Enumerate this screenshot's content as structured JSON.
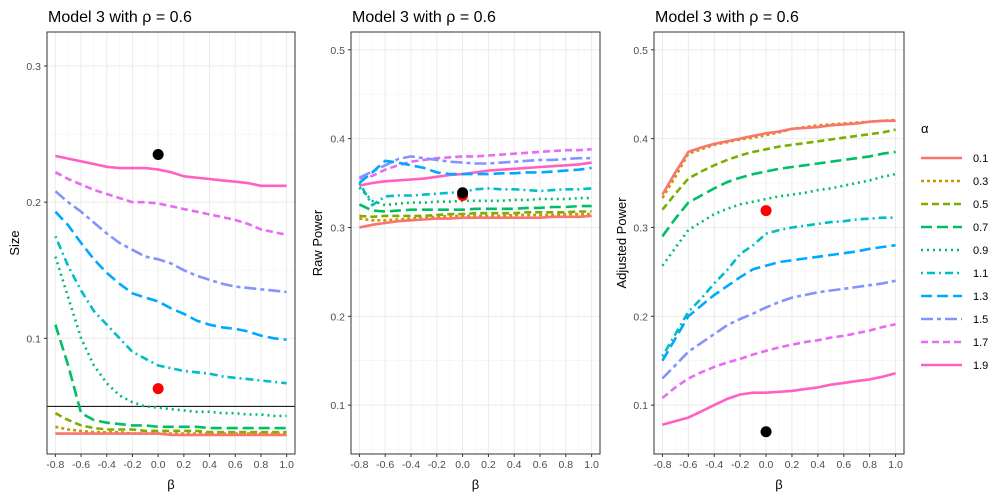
{
  "chart_data": {
    "type": "line",
    "x": [
      -0.8,
      -0.7,
      -0.6,
      -0.5,
      -0.4,
      -0.3,
      -0.2,
      -0.1,
      0.0,
      0.1,
      0.2,
      0.3,
      0.4,
      0.5,
      0.6,
      0.7,
      0.8,
      0.9,
      1.0
    ],
    "xticks": [
      "-0.8",
      "-0.6",
      "-0.4",
      "-0.2",
      "0.0",
      "0.2",
      "0.4",
      "0.6",
      "0.8",
      "1.0"
    ],
    "legend": {
      "title": "α",
      "entries": [
        {
          "label": "0.1",
          "color": "#F8766D",
          "dash": "solid"
        },
        {
          "label": "0.3",
          "color": "#CD9600",
          "dash": "dotted-short"
        },
        {
          "label": "0.5",
          "color": "#7CAE00",
          "dash": "dash"
        },
        {
          "label": "0.7",
          "color": "#00BE67",
          "dash": "longdash"
        },
        {
          "label": "0.9",
          "color": "#00BE67",
          "dash": "dotted"
        },
        {
          "label": "1.1",
          "color": "#00BFC4",
          "dash": "dotdash"
        },
        {
          "label": "1.3",
          "color": "#00A9FF",
          "dash": "longdash"
        },
        {
          "label": "1.5",
          "color": "#8494FF",
          "dash": "twodash"
        },
        {
          "label": "1.7",
          "color": "#E76BF3",
          "dash": "dash"
        },
        {
          "label": "1.9",
          "color": "#FF61C3",
          "dash": "solid"
        }
      ]
    },
    "panels": [
      {
        "title": "Model 3 with ρ =  0.6",
        "xlabel": "β",
        "ylabel": "Size",
        "ylim": [
          0.015,
          0.325
        ],
        "yticks": [
          "0.1",
          "0.2",
          "0.3"
        ],
        "hline": 0.05,
        "points": [
          {
            "x": 0.0,
            "y": 0.235,
            "color": "#000000"
          },
          {
            "x": 0.0,
            "y": 0.063,
            "color": "#FF0000"
          }
        ],
        "series": [
          {
            "name": "0.1",
            "values": [
              0.03,
              0.03,
              0.03,
              0.03,
              0.03,
              0.03,
              0.03,
              0.03,
              0.03,
              0.029,
              0.029,
              0.029,
              0.029,
              0.029,
              0.029,
              0.029,
              0.029,
              0.029,
              0.029
            ]
          },
          {
            "name": "0.3",
            "values": [
              0.035,
              0.033,
              0.032,
              0.031,
              0.031,
              0.031,
              0.03,
              0.03,
              0.03,
              0.03,
              0.03,
              0.03,
              0.03,
              0.03,
              0.03,
              0.03,
              0.03,
              0.03,
              0.03
            ]
          },
          {
            "name": "0.5",
            "values": [
              0.045,
              0.04,
              0.036,
              0.034,
              0.033,
              0.033,
              0.033,
              0.032,
              0.032,
              0.032,
              0.032,
              0.032,
              0.031,
              0.031,
              0.031,
              0.031,
              0.031,
              0.031,
              0.031
            ]
          },
          {
            "name": "0.7",
            "values": [
              0.11,
              0.08,
              0.045,
              0.04,
              0.038,
              0.037,
              0.036,
              0.036,
              0.035,
              0.035,
              0.035,
              0.035,
              0.034,
              0.034,
              0.034,
              0.034,
              0.034,
              0.034,
              0.034
            ]
          },
          {
            "name": "0.9",
            "values": [
              0.16,
              0.13,
              0.1,
              0.08,
              0.067,
              0.058,
              0.053,
              0.05,
              0.049,
              0.048,
              0.047,
              0.046,
              0.046,
              0.045,
              0.045,
              0.044,
              0.044,
              0.043,
              0.043
            ]
          },
          {
            "name": "1.1",
            "values": [
              0.175,
              0.153,
              0.135,
              0.12,
              0.11,
              0.1,
              0.09,
              0.085,
              0.08,
              0.078,
              0.076,
              0.075,
              0.074,
              0.072,
              0.071,
              0.07,
              0.069,
              0.068,
              0.067
            ]
          },
          {
            "name": "1.3",
            "values": [
              0.193,
              0.183,
              0.17,
              0.158,
              0.148,
              0.14,
              0.133,
              0.13,
              0.127,
              0.122,
              0.118,
              0.113,
              0.11,
              0.108,
              0.107,
              0.105,
              0.102,
              0.1,
              0.099
            ]
          },
          {
            "name": "1.5",
            "values": [
              0.208,
              0.2,
              0.193,
              0.185,
              0.177,
              0.17,
              0.165,
              0.16,
              0.158,
              0.155,
              0.15,
              0.146,
              0.143,
              0.14,
              0.138,
              0.137,
              0.136,
              0.135,
              0.134
            ]
          },
          {
            "name": "1.7",
            "values": [
              0.222,
              0.217,
              0.213,
              0.209,
              0.206,
              0.203,
              0.2,
              0.2,
              0.199,
              0.197,
              0.195,
              0.193,
              0.191,
              0.189,
              0.187,
              0.184,
              0.18,
              0.178,
              0.176
            ]
          },
          {
            "name": "1.9",
            "values": [
              0.234,
              0.232,
              0.23,
              0.228,
              0.226,
              0.225,
              0.225,
              0.225,
              0.224,
              0.222,
              0.219,
              0.218,
              0.217,
              0.216,
              0.215,
              0.214,
              0.212,
              0.212,
              0.212
            ]
          }
        ]
      },
      {
        "title": "Model 3 with ρ =  0.6",
        "xlabel": "β",
        "ylabel": "Raw Power",
        "ylim": [
          0.045,
          0.52
        ],
        "yticks": [
          "0.1",
          "0.2",
          "0.3",
          "0.4",
          "0.5"
        ],
        "points": [
          {
            "x": 0.0,
            "y": 0.336,
            "color": "#FF0000"
          },
          {
            "x": 0.0,
            "y": 0.339,
            "color": "#000000"
          }
        ],
        "series": [
          {
            "name": "0.1",
            "values": [
              0.3,
              0.303,
              0.305,
              0.307,
              0.308,
              0.309,
              0.31,
              0.31,
              0.311,
              0.311,
              0.311,
              0.311,
              0.311,
              0.311,
              0.311,
              0.312,
              0.312,
              0.312,
              0.313
            ]
          },
          {
            "name": "0.3",
            "values": [
              0.31,
              0.308,
              0.308,
              0.309,
              0.31,
              0.311,
              0.312,
              0.313,
              0.313,
              0.313,
              0.313,
              0.313,
              0.314,
              0.314,
              0.314,
              0.314,
              0.315,
              0.315,
              0.315
            ]
          },
          {
            "name": "0.5",
            "values": [
              0.313,
              0.312,
              0.313,
              0.313,
              0.313,
              0.313,
              0.314,
              0.315,
              0.315,
              0.316,
              0.316,
              0.316,
              0.316,
              0.317,
              0.317,
              0.317,
              0.317,
              0.318,
              0.318
            ]
          },
          {
            "name": "0.7",
            "values": [
              0.326,
              0.319,
              0.318,
              0.319,
              0.32,
              0.32,
              0.32,
              0.32,
              0.32,
              0.321,
              0.321,
              0.321,
              0.321,
              0.322,
              0.322,
              0.323,
              0.323,
              0.324,
              0.324
            ]
          },
          {
            "name": "0.9",
            "values": [
              0.345,
              0.33,
              0.325,
              0.327,
              0.328,
              0.328,
              0.329,
              0.329,
              0.33,
              0.33,
              0.33,
              0.33,
              0.331,
              0.331,
              0.332,
              0.332,
              0.332,
              0.333,
              0.333
            ]
          },
          {
            "name": "1.1",
            "values": [
              0.35,
              0.325,
              0.335,
              0.336,
              0.336,
              0.337,
              0.338,
              0.339,
              0.34,
              0.343,
              0.344,
              0.343,
              0.343,
              0.342,
              0.341,
              0.342,
              0.343,
              0.343,
              0.344
            ]
          },
          {
            "name": "1.3",
            "values": [
              0.35,
              0.362,
              0.375,
              0.373,
              0.37,
              0.367,
              0.362,
              0.36,
              0.36,
              0.36,
              0.36,
              0.361,
              0.361,
              0.362,
              0.362,
              0.363,
              0.364,
              0.365,
              0.367
            ]
          },
          {
            "name": "1.5",
            "values": [
              0.356,
              0.363,
              0.37,
              0.377,
              0.38,
              0.378,
              0.376,
              0.374,
              0.373,
              0.372,
              0.372,
              0.373,
              0.374,
              0.375,
              0.376,
              0.376,
              0.377,
              0.378,
              0.378
            ]
          },
          {
            "name": "1.7",
            "values": [
              0.355,
              0.358,
              0.365,
              0.37,
              0.374,
              0.376,
              0.378,
              0.379,
              0.38,
              0.38,
              0.381,
              0.382,
              0.383,
              0.384,
              0.385,
              0.386,
              0.387,
              0.387,
              0.388
            ]
          },
          {
            "name": "1.9",
            "values": [
              0.347,
              0.35,
              0.352,
              0.353,
              0.354,
              0.355,
              0.357,
              0.359,
              0.36,
              0.362,
              0.364,
              0.365,
              0.366,
              0.367,
              0.368,
              0.369,
              0.37,
              0.371,
              0.373
            ]
          }
        ]
      },
      {
        "title": "Model 3 with ρ =  0.6",
        "xlabel": "β",
        "ylabel": "Adjusted Power",
        "ylim": [
          0.045,
          0.52
        ],
        "yticks": [
          "0.1",
          "0.2",
          "0.3",
          "0.4",
          "0.5"
        ],
        "points": [
          {
            "x": 0.0,
            "y": 0.319,
            "color": "#FF0000"
          },
          {
            "x": 0.0,
            "y": 0.07,
            "color": "#000000"
          }
        ],
        "series": [
          {
            "name": "0.1",
            "values": [
              0.337,
              0.362,
              0.385,
              0.39,
              0.394,
              0.397,
              0.4,
              0.403,
              0.406,
              0.408,
              0.411,
              0.412,
              0.413,
              0.415,
              0.416,
              0.417,
              0.419,
              0.42,
              0.42
            ]
          },
          {
            "name": "0.3",
            "values": [
              0.333,
              0.357,
              0.383,
              0.388,
              0.393,
              0.396,
              0.399,
              0.401,
              0.404,
              0.407,
              0.411,
              0.413,
              0.415,
              0.416,
              0.417,
              0.418,
              0.419,
              0.42,
              0.421
            ]
          },
          {
            "name": "0.5",
            "values": [
              0.32,
              0.338,
              0.355,
              0.363,
              0.37,
              0.376,
              0.381,
              0.385,
              0.388,
              0.391,
              0.393,
              0.395,
              0.397,
              0.399,
              0.401,
              0.403,
              0.405,
              0.407,
              0.41
            ]
          },
          {
            "name": "0.7",
            "values": [
              0.29,
              0.31,
              0.328,
              0.336,
              0.344,
              0.351,
              0.356,
              0.36,
              0.363,
              0.366,
              0.368,
              0.37,
              0.372,
              0.374,
              0.376,
              0.378,
              0.38,
              0.383,
              0.385
            ]
          },
          {
            "name": "0.9",
            "values": [
              0.257,
              0.277,
              0.297,
              0.306,
              0.315,
              0.321,
              0.326,
              0.329,
              0.332,
              0.335,
              0.337,
              0.339,
              0.342,
              0.344,
              0.347,
              0.35,
              0.353,
              0.357,
              0.36
            ]
          },
          {
            "name": "1.1",
            "values": [
              0.155,
              0.18,
              0.205,
              0.22,
              0.237,
              0.252,
              0.27,
              0.28,
              0.293,
              0.297,
              0.3,
              0.302,
              0.304,
              0.306,
              0.307,
              0.309,
              0.31,
              0.311,
              0.311
            ]
          },
          {
            "name": "1.3",
            "values": [
              0.15,
              0.175,
              0.2,
              0.212,
              0.224,
              0.234,
              0.244,
              0.253,
              0.257,
              0.261,
              0.263,
              0.265,
              0.267,
              0.269,
              0.271,
              0.273,
              0.276,
              0.278,
              0.28
            ]
          },
          {
            "name": "1.5",
            "values": [
              0.13,
              0.145,
              0.16,
              0.17,
              0.18,
              0.19,
              0.197,
              0.203,
              0.21,
              0.216,
              0.221,
              0.224,
              0.227,
              0.229,
              0.231,
              0.233,
              0.235,
              0.237,
              0.24
            ]
          },
          {
            "name": "1.7",
            "values": [
              0.108,
              0.12,
              0.13,
              0.137,
              0.143,
              0.148,
              0.152,
              0.157,
              0.161,
              0.165,
              0.168,
              0.171,
              0.173,
              0.176,
              0.178,
              0.181,
              0.184,
              0.188,
              0.191
            ]
          },
          {
            "name": "1.9",
            "values": [
              0.078,
              0.082,
              0.086,
              0.093,
              0.1,
              0.107,
              0.112,
              0.114,
              0.114,
              0.115,
              0.116,
              0.118,
              0.12,
              0.123,
              0.125,
              0.127,
              0.129,
              0.132,
              0.136
            ]
          }
        ]
      }
    ]
  }
}
